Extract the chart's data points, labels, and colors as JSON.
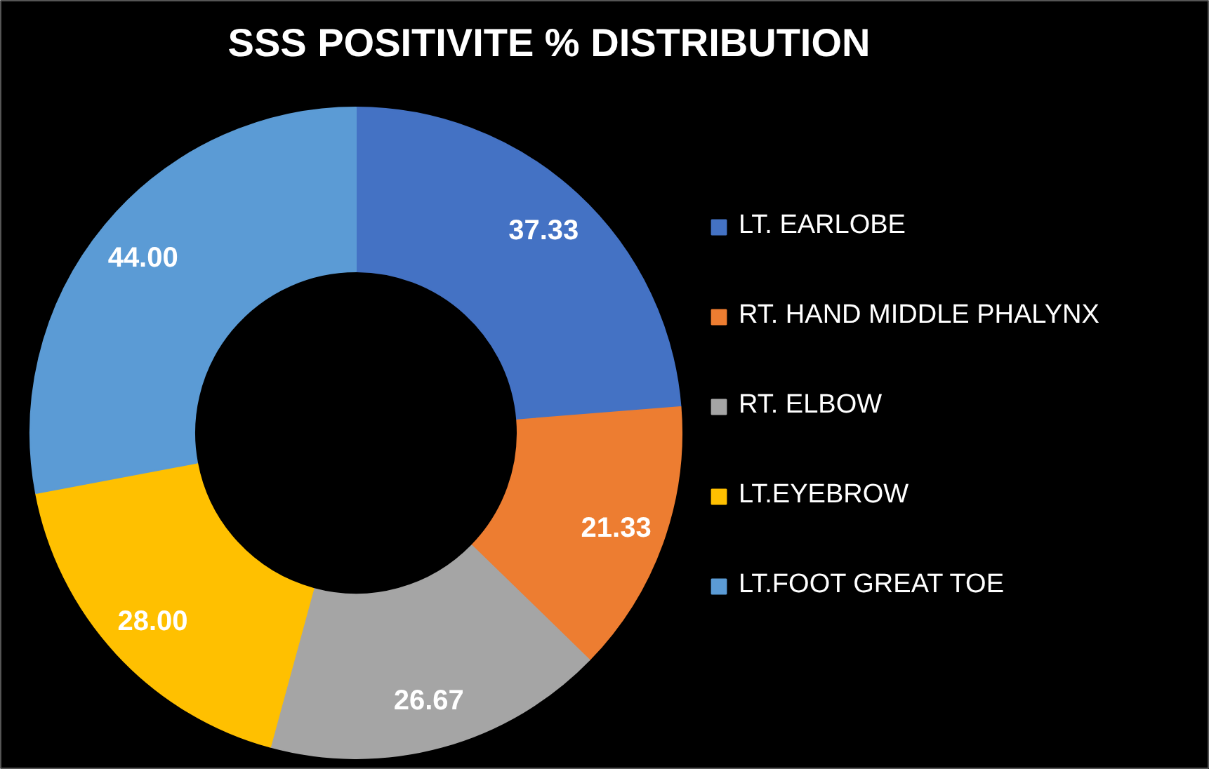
{
  "chart_data": {
    "type": "donut",
    "title": "SSS POSITIVITE % DISTRIBUTION",
    "categories": [
      "LT. EARLOBE",
      "RT. HAND MIDDLE PHALYNX",
      "RT. ELBOW",
      "LT.EYEBROW",
      "LT.FOOT GREAT TOE"
    ],
    "values": [
      37.33,
      21.33,
      26.67,
      28.0,
      44.0
    ],
    "value_labels": [
      "37.33",
      "21.33",
      "26.67",
      "28.00",
      "44.00"
    ],
    "colors": [
      "#4472c4",
      "#ed7d31",
      "#a5a5a5",
      "#ffc000",
      "#5b9bd5"
    ],
    "legend": "right"
  }
}
